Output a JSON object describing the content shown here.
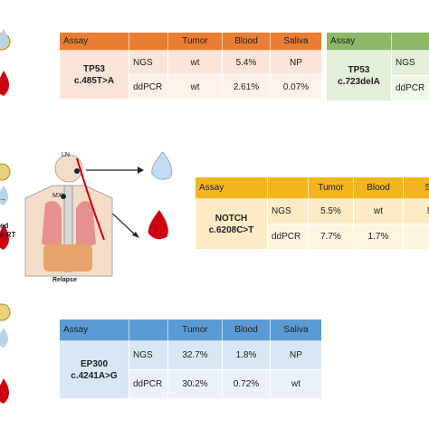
{
  "figure": {
    "left_labels": [
      "ed",
      "e RT"
    ],
    "body_labels": {
      "ln": "LN",
      "mx": "MX",
      "relapse": "Relapse"
    }
  },
  "tables": [
    {
      "header": [
        "Assay",
        "Tumor",
        "Blood",
        "Saliva"
      ],
      "gene": [
        "TP53",
        "c.485T>A"
      ],
      "rows": [
        [
          "NGS",
          "wt",
          "5.4%",
          "NP"
        ],
        [
          "ddPCR",
          "wt",
          "2.61%",
          "0.07%"
        ]
      ]
    },
    {
      "header": [
        "Assay"
      ],
      "gene": [
        "TP53",
        "c.723delA"
      ],
      "rows": [
        [
          "NGS"
        ],
        [
          "ddPCR"
        ]
      ]
    },
    {
      "header": [
        "Assay",
        "Tumor",
        "Blood",
        "Sa"
      ],
      "gene": [
        "NOTCH",
        "c.6208C>T"
      ],
      "rows": [
        [
          "NGS",
          "5.5%",
          "wt",
          "N"
        ],
        [
          "ddPCR",
          "7.7%",
          "1.7%"
        ]
      ]
    },
    {
      "header": [
        "Assay",
        "Tumor",
        "Blood",
        "Saliva"
      ],
      "gene": [
        "EP300",
        "c.4241A>G"
      ],
      "rows": [
        [
          "NGS",
          "32.7%",
          "1.8%",
          "NP"
        ],
        [
          "ddPCR",
          "30.2%",
          "0.72%",
          "wt"
        ]
      ]
    }
  ]
}
